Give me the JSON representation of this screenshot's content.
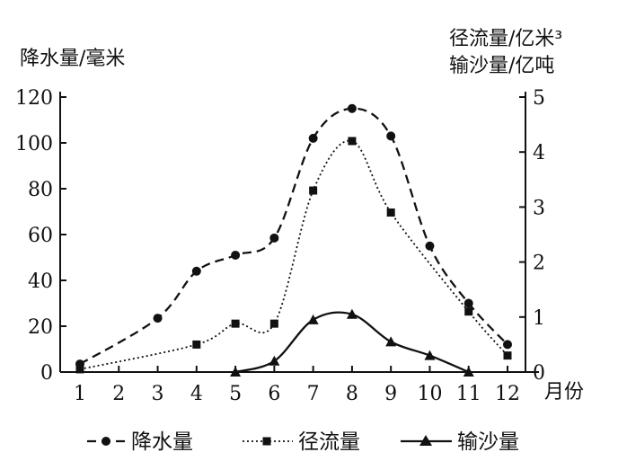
{
  "chart_data": {
    "type": "line",
    "left_axis_title": "降水量/毫米",
    "right_axis_title_line1": "径流量/亿米³",
    "right_axis_title_line2": "输沙量/亿吨",
    "x_axis_unit": "月份",
    "x_ticks": [
      "1",
      "2",
      "3",
      "4",
      "5",
      "6",
      "7",
      "8",
      "9",
      "10",
      "11",
      "12"
    ],
    "left_ylim": [
      0,
      120
    ],
    "left_ticks": [
      "0",
      "20",
      "40",
      "60",
      "80",
      "100",
      "120"
    ],
    "right_ylim": [
      0,
      5
    ],
    "right_ticks": [
      "0",
      "1",
      "2",
      "3",
      "4",
      "5"
    ],
    "grid": false,
    "legend_position": "bottom",
    "series": [
      {
        "name": "降水量",
        "axis": "left",
        "marker": "circle",
        "line_style": "dashed",
        "x": [
          1,
          3,
          4,
          5,
          6,
          7,
          8,
          9,
          10,
          11,
          12
        ],
        "y": [
          3.5,
          23.5,
          44,
          51,
          58.5,
          102,
          115,
          103,
          55,
          30,
          12
        ]
      },
      {
        "name": "径流量",
        "axis": "right",
        "marker": "square",
        "line_style": "dotted",
        "x": [
          1,
          4,
          5,
          6,
          7,
          8,
          9,
          11,
          12
        ],
        "y": [
          0.05,
          0.5,
          0.88,
          0.88,
          3.3,
          4.2,
          2.9,
          1.1,
          0.3
        ]
      },
      {
        "name": "输沙量",
        "axis": "right",
        "marker": "triangle",
        "line_style": "solid",
        "x": [
          5,
          6,
          7,
          8,
          9,
          10,
          11
        ],
        "y": [
          0,
          0.2,
          0.95,
          1.05,
          0.55,
          0.3,
          0
        ]
      }
    ]
  }
}
